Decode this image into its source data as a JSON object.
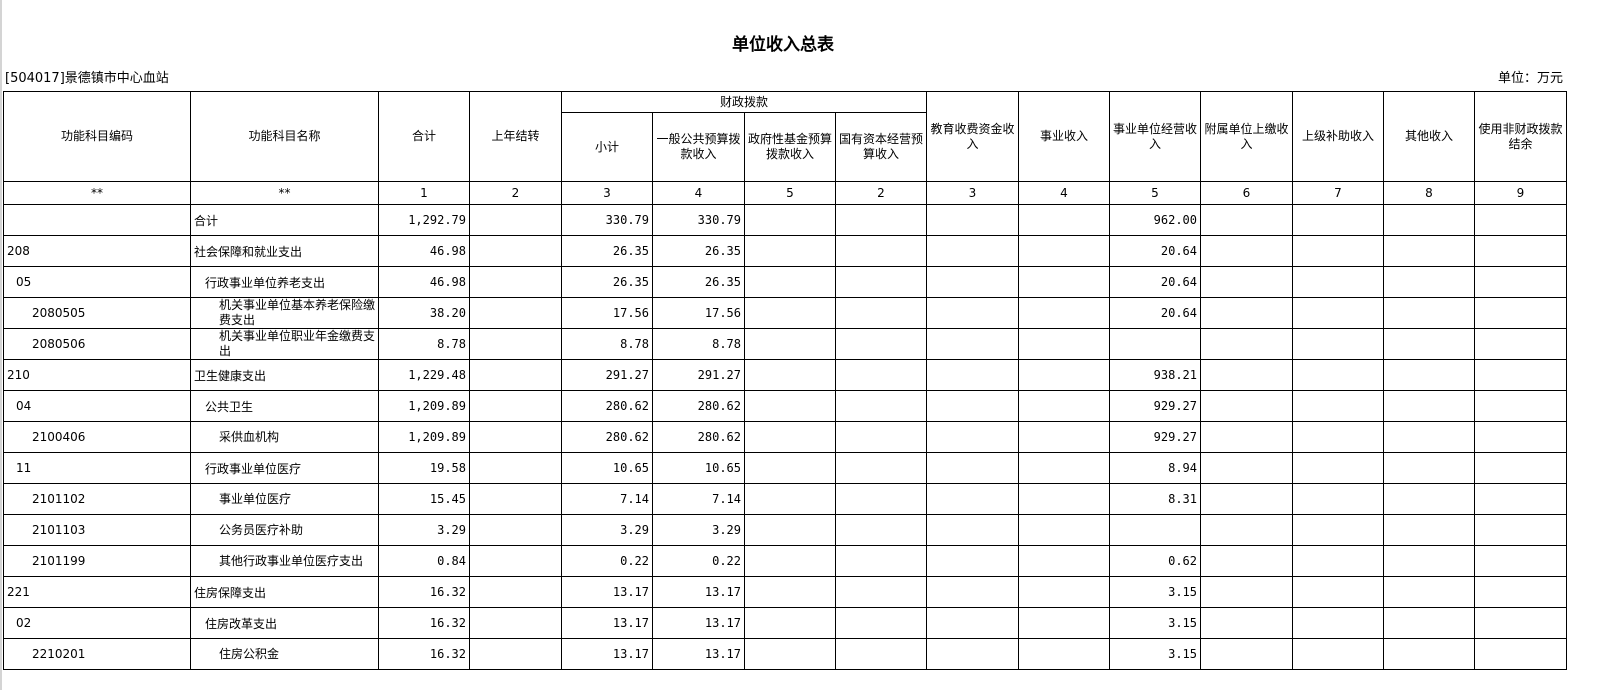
{
  "title": "单位收入总表",
  "org": "[504017]景德镇市中心血站",
  "unit": "单位：万元",
  "headers": {
    "code": "功能科目编码",
    "name": "功能科目名称",
    "total": "合计",
    "carry": "上年结转",
    "fiscal": "财政拨款",
    "subtotal": "小计",
    "general": "一般公共预算拨款收入",
    "fund": "政府性基金预算拨款收入",
    "state": "国有资本经营预算收入",
    "edu": "教育收费资金收入",
    "business": "事业收入",
    "operating": "事业单位经营收入",
    "affiliate": "附属单位上缴收入",
    "superior": "上级补助收入",
    "other": "其他收入",
    "nonfiscal": "使用非财政拨款结余"
  },
  "index_row": [
    "**",
    "**",
    "1",
    "2",
    "3",
    "4",
    "5",
    "2",
    "3",
    "4",
    "5",
    "6",
    "7",
    "8",
    "9"
  ],
  "rows": [
    {
      "code": "",
      "name": "合计",
      "level": 0,
      "total": "1,292.79",
      "sub": "330.79",
      "gen": "330.79",
      "op": "962.00"
    },
    {
      "code": "208",
      "name": "社会保障和就业支出",
      "level": 0,
      "total": "46.98",
      "sub": "26.35",
      "gen": "26.35",
      "op": "20.64"
    },
    {
      "code": "05",
      "name": "行政事业单位养老支出",
      "level": 1,
      "total": "46.98",
      "sub": "26.35",
      "gen": "26.35",
      "op": "20.64"
    },
    {
      "code": "2080505",
      "name": "机关事业单位基本养老保险缴费支出",
      "level": 2,
      "total": "38.20",
      "sub": "17.56",
      "gen": "17.56",
      "op": "20.64"
    },
    {
      "code": "2080506",
      "name": "机关事业单位职业年金缴费支出",
      "level": 2,
      "total": "8.78",
      "sub": "8.78",
      "gen": "8.78",
      "op": ""
    },
    {
      "code": "210",
      "name": "卫生健康支出",
      "level": 0,
      "total": "1,229.48",
      "sub": "291.27",
      "gen": "291.27",
      "op": "938.21"
    },
    {
      "code": "04",
      "name": "公共卫生",
      "level": 1,
      "total": "1,209.89",
      "sub": "280.62",
      "gen": "280.62",
      "op": "929.27"
    },
    {
      "code": "2100406",
      "name": "采供血机构",
      "level": 2,
      "total": "1,209.89",
      "sub": "280.62",
      "gen": "280.62",
      "op": "929.27"
    },
    {
      "code": "11",
      "name": "行政事业单位医疗",
      "level": 1,
      "total": "19.58",
      "sub": "10.65",
      "gen": "10.65",
      "op": "8.94"
    },
    {
      "code": "2101102",
      "name": "事业单位医疗",
      "level": 2,
      "total": "15.45",
      "sub": "7.14",
      "gen": "7.14",
      "op": "8.31"
    },
    {
      "code": "2101103",
      "name": "公务员医疗补助",
      "level": 2,
      "total": "3.29",
      "sub": "3.29",
      "gen": "3.29",
      "op": ""
    },
    {
      "code": "2101199",
      "name": "其他行政事业单位医疗支出",
      "level": 2,
      "total": "0.84",
      "sub": "0.22",
      "gen": "0.22",
      "op": "0.62"
    },
    {
      "code": "221",
      "name": "住房保障支出",
      "level": 0,
      "total": "16.32",
      "sub": "13.17",
      "gen": "13.17",
      "op": "3.15"
    },
    {
      "code": "02",
      "name": "住房改革支出",
      "level": 1,
      "total": "16.32",
      "sub": "13.17",
      "gen": "13.17",
      "op": "3.15"
    },
    {
      "code": "2210201",
      "name": "住房公积金",
      "level": 2,
      "total": "16.32",
      "sub": "13.17",
      "gen": "13.17",
      "op": "3.15"
    }
  ]
}
